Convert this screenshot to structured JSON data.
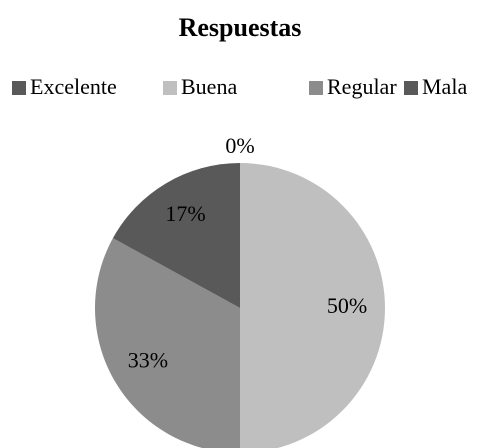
{
  "chart_data": {
    "type": "pie",
    "title": "Respuestas",
    "categories": [
      "Excelente",
      "Buena",
      "Regular",
      "Mala"
    ],
    "values": [
      0,
      50,
      33,
      17
    ],
    "value_labels": [
      "0%",
      "50%",
      "33%",
      "17%"
    ],
    "colors": [
      "#595959",
      "#bfbfbf",
      "#8c8c8c",
      "#595959"
    ],
    "legend": "top"
  }
}
